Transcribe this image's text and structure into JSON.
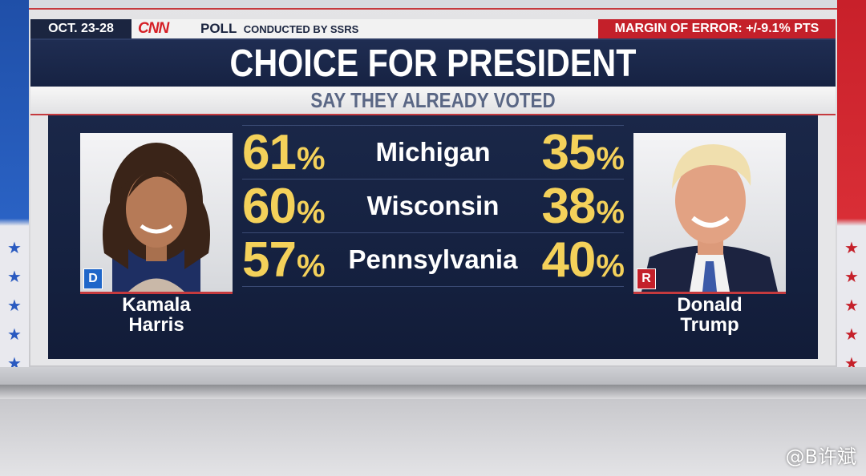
{
  "header": {
    "date": "OCT. 23-28",
    "network": "CNN",
    "poll_label": "POLL",
    "conducted_by": "CONDUCTED BY SSRS",
    "margin_of_error": "MARGIN OF ERROR: +/-9.1% PTS"
  },
  "title": "CHOICE FOR PRESIDENT",
  "subtitle": "SAY THEY ALREADY VOTED",
  "candidates": {
    "left": {
      "name_line1": "Kamala",
      "name_line2": "Harris",
      "party": "D"
    },
    "right": {
      "name_line1": "Donald",
      "name_line2": "Trump",
      "party": "R"
    }
  },
  "watermark": "@B许斌",
  "colors": {
    "democrat": "#1f66c9",
    "republican": "#c4202a",
    "percent": "#f4d15a",
    "panel": "#152140"
  },
  "chart_data": {
    "type": "table",
    "title": "CHOICE FOR PRESIDENT",
    "subtitle": "SAY THEY ALREADY VOTED",
    "categories": [
      "Michigan",
      "Wisconsin",
      "Pennsylvania"
    ],
    "series": [
      {
        "name": "Kamala Harris",
        "values": [
          61,
          60,
          57
        ]
      },
      {
        "name": "Donald Trump",
        "values": [
          35,
          38,
          40
        ]
      }
    ],
    "unit": "%"
  }
}
